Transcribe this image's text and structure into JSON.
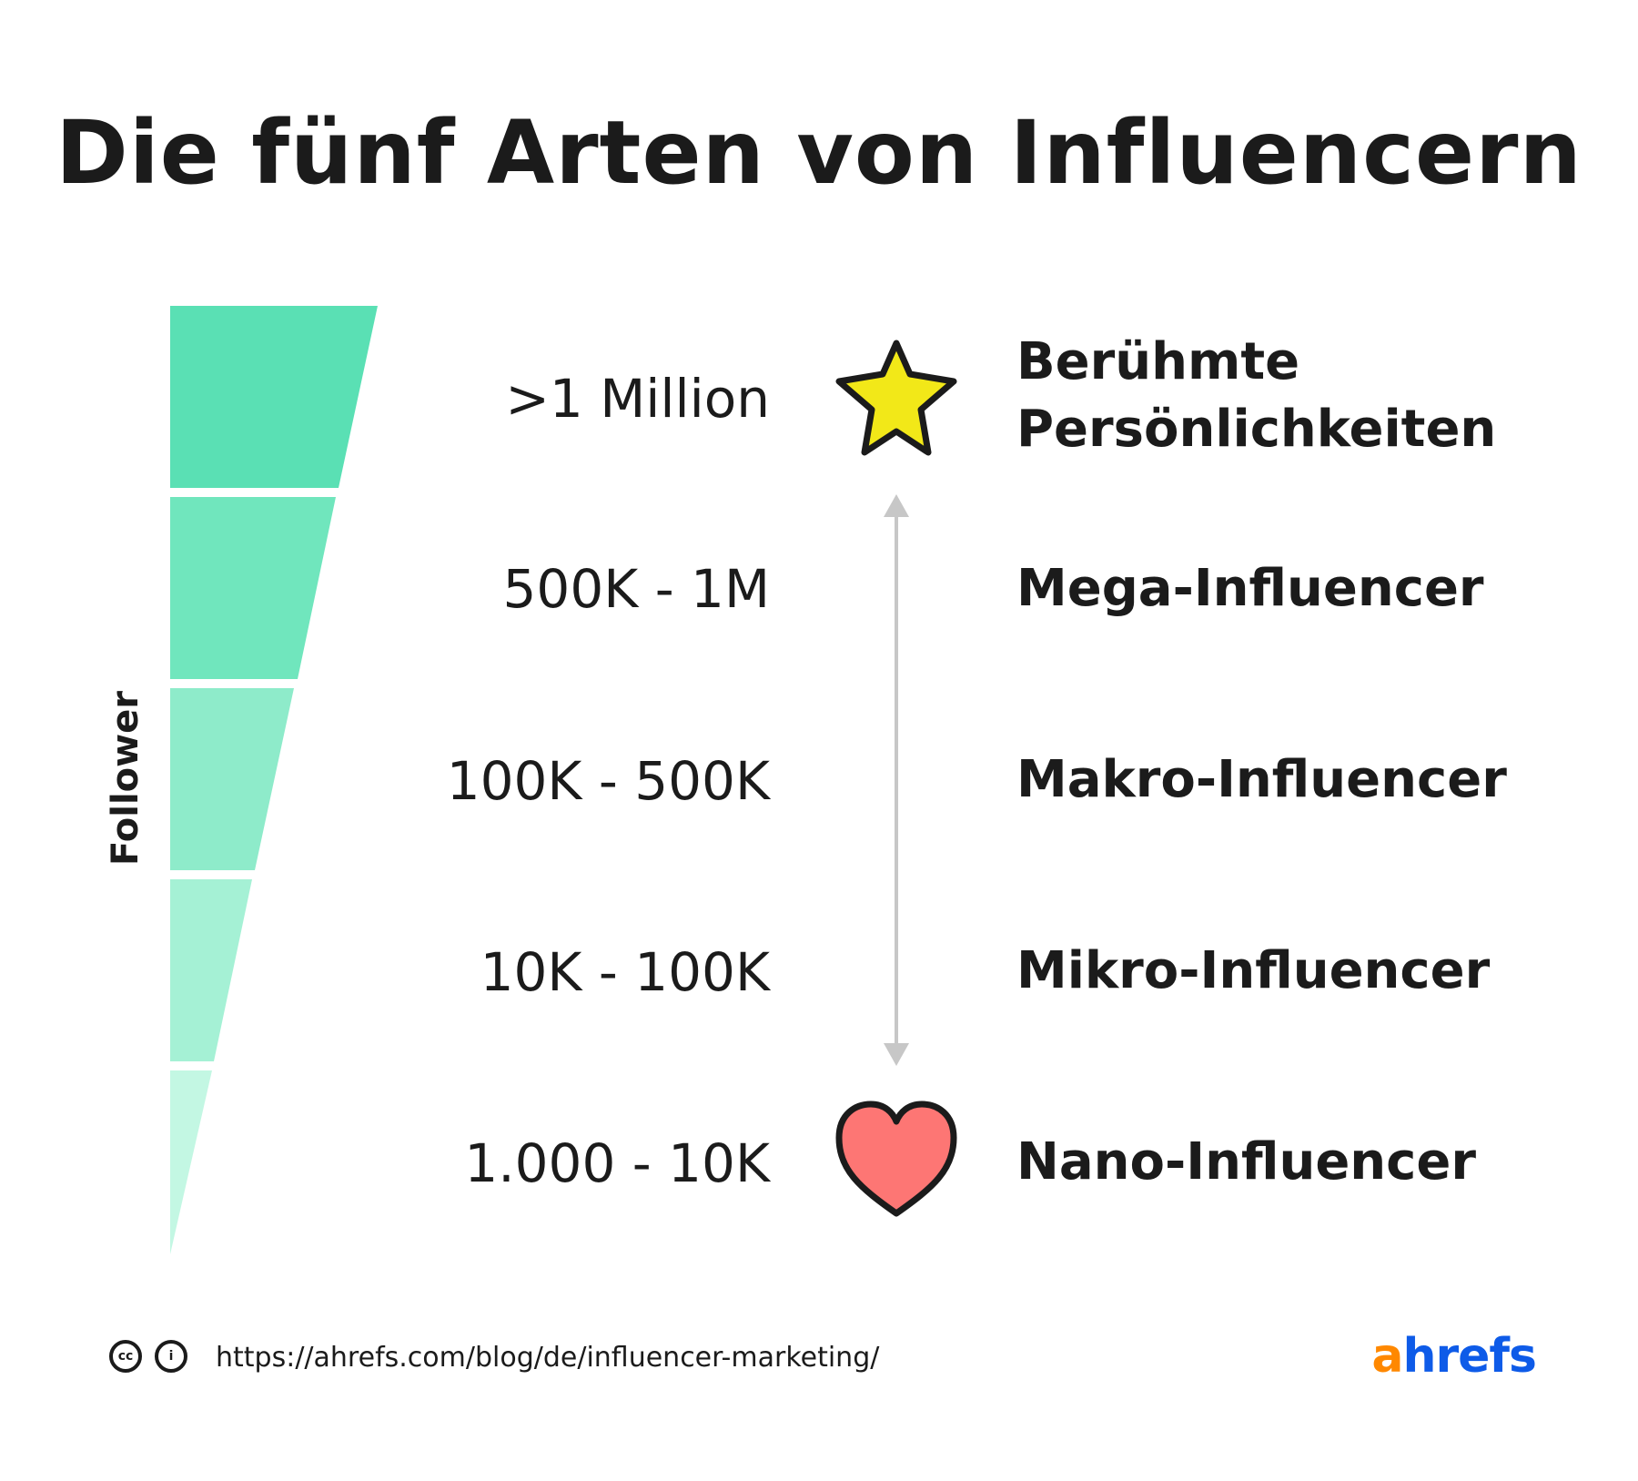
{
  "title": "Die fünf Arten von Influencern",
  "axis_label": "Follower",
  "tiers": [
    {
      "range": ">1 Million",
      "type_line1": "Berühmte",
      "type_line2": "Persönlichkeiten",
      "icon": "star-icon",
      "color": "#5ae0b4"
    },
    {
      "range": "500K - 1M",
      "type": "Mega-Influencer",
      "color": "#70e6bd"
    },
    {
      "range": "100K - 500K",
      "type": "Makro-Influencer",
      "color": "#8eebca"
    },
    {
      "range": "10K - 100K",
      "type": "Mikro-Influencer",
      "color": "#a5f1d5"
    },
    {
      "range": "1.000 - 10K",
      "type": "Nano-Influencer",
      "icon": "heart-icon",
      "color": "#c3f7e3"
    }
  ],
  "icons": {
    "star_color": "#f2e818",
    "heart_color": "#fd7674",
    "arrow_color": "#c7c7c7"
  },
  "footer": {
    "url": "https://ahrefs.com/blog/de/influencer-marketing/",
    "cc_label": "cc",
    "by_label": "i"
  },
  "logo": {
    "first": "a",
    "rest": "hrefs"
  }
}
